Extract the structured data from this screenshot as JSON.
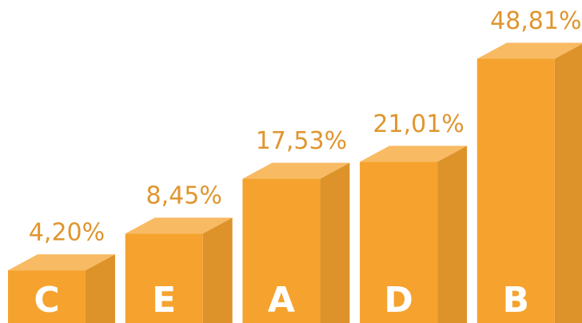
{
  "chart_data": {
    "type": "bar3d",
    "categories": [
      "C",
      "E",
      "A",
      "D",
      "B"
    ],
    "values": [
      4.2,
      8.45,
      17.53,
      21.01,
      48.81
    ],
    "value_labels": [
      "4,20%",
      "8,45%",
      "17,53%",
      "21,01%",
      "48,81%"
    ],
    "color": "#f5a32e"
  }
}
